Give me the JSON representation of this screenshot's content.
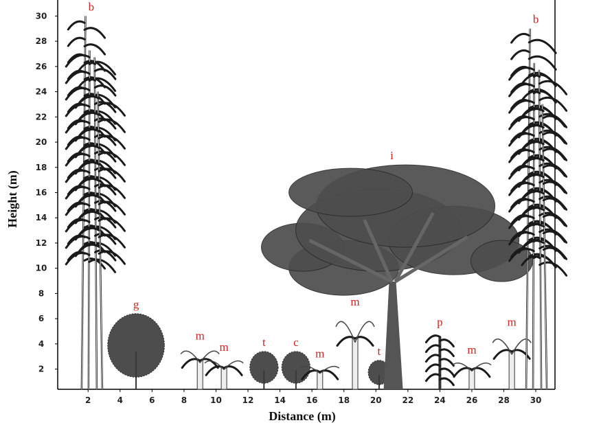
{
  "x_axis": {
    "label": "Distance (m)",
    "lim": [
      0.1,
      31.2
    ],
    "ticks": [
      2,
      4,
      6,
      8,
      10,
      12,
      14,
      16,
      18,
      20,
      22,
      24,
      26,
      28,
      30
    ]
  },
  "y_axis": {
    "label": "Height (m)",
    "lim": [
      0.4,
      31
    ],
    "ticks": [
      2,
      4,
      6,
      8,
      10,
      12,
      14,
      16,
      18,
      20,
      22,
      24,
      26,
      28,
      30
    ]
  },
  "plants": [
    {
      "label": "b",
      "x": 2.2,
      "height": 30
    },
    {
      "label": "g",
      "x": 5,
      "height": 6.4
    },
    {
      "label": "m",
      "x": 9,
      "height": 3.9
    },
    {
      "label": "m",
      "x": 10.5,
      "height": 3
    },
    {
      "label": "t",
      "x": 13,
      "height": 3.4
    },
    {
      "label": "c",
      "x": 15,
      "height": 3.4
    },
    {
      "label": "m",
      "x": 16.5,
      "height": 2.5
    },
    {
      "label": "m",
      "x": 18.7,
      "height": 6.6
    },
    {
      "label": "t",
      "x": 20.2,
      "height": 2.7
    },
    {
      "label": "i",
      "x": 21,
      "height": 18.2
    },
    {
      "label": "p",
      "x": 24,
      "height": 5
    },
    {
      "label": "m",
      "x": 26,
      "height": 2.8
    },
    {
      "label": "m",
      "x": 28.5,
      "height": 5
    },
    {
      "label": "b",
      "x": 30,
      "height": 29
    }
  ]
}
